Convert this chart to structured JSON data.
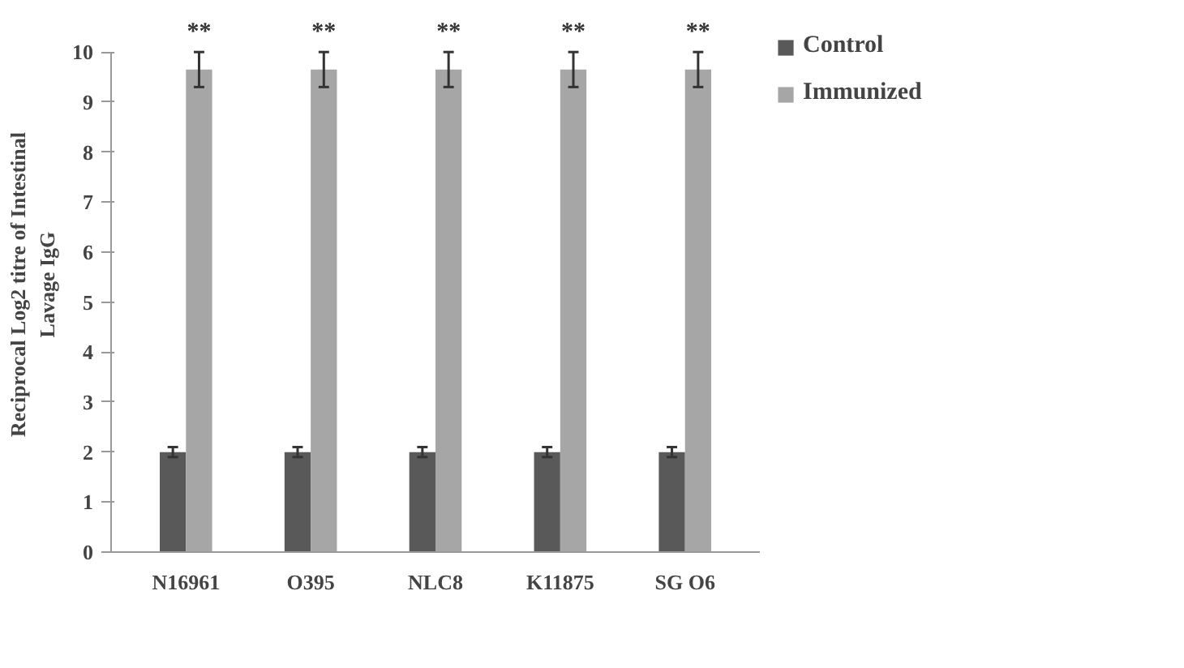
{
  "chart_data": {
    "type": "bar",
    "ylabel": "Reciprocal Log2 titre of Intestinal\nLavage IgG",
    "categories": [
      "N16961",
      "O395",
      "NLC8",
      "K11875",
      "SG O6"
    ],
    "series": [
      {
        "name": "Control",
        "color": "#595959",
        "values": [
          2,
          2,
          2,
          2,
          2
        ],
        "errors": [
          0.1,
          0.1,
          0.1,
          0.1,
          0.1
        ]
      },
      {
        "name": "Immunized",
        "color": "#a6a6a6",
        "values": [
          9.65,
          9.65,
          9.65,
          9.65,
          9.65
        ],
        "errors": [
          0.35,
          0.35,
          0.35,
          0.35,
          0.35
        ]
      }
    ],
    "ylim": [
      0,
      10
    ],
    "yticks": [
      0,
      1,
      2,
      3,
      4,
      5,
      6,
      7,
      8,
      9,
      10
    ],
    "grid": false,
    "legend": "right",
    "annotations": [
      "**",
      "**",
      "**",
      "**",
      "**"
    ]
  }
}
